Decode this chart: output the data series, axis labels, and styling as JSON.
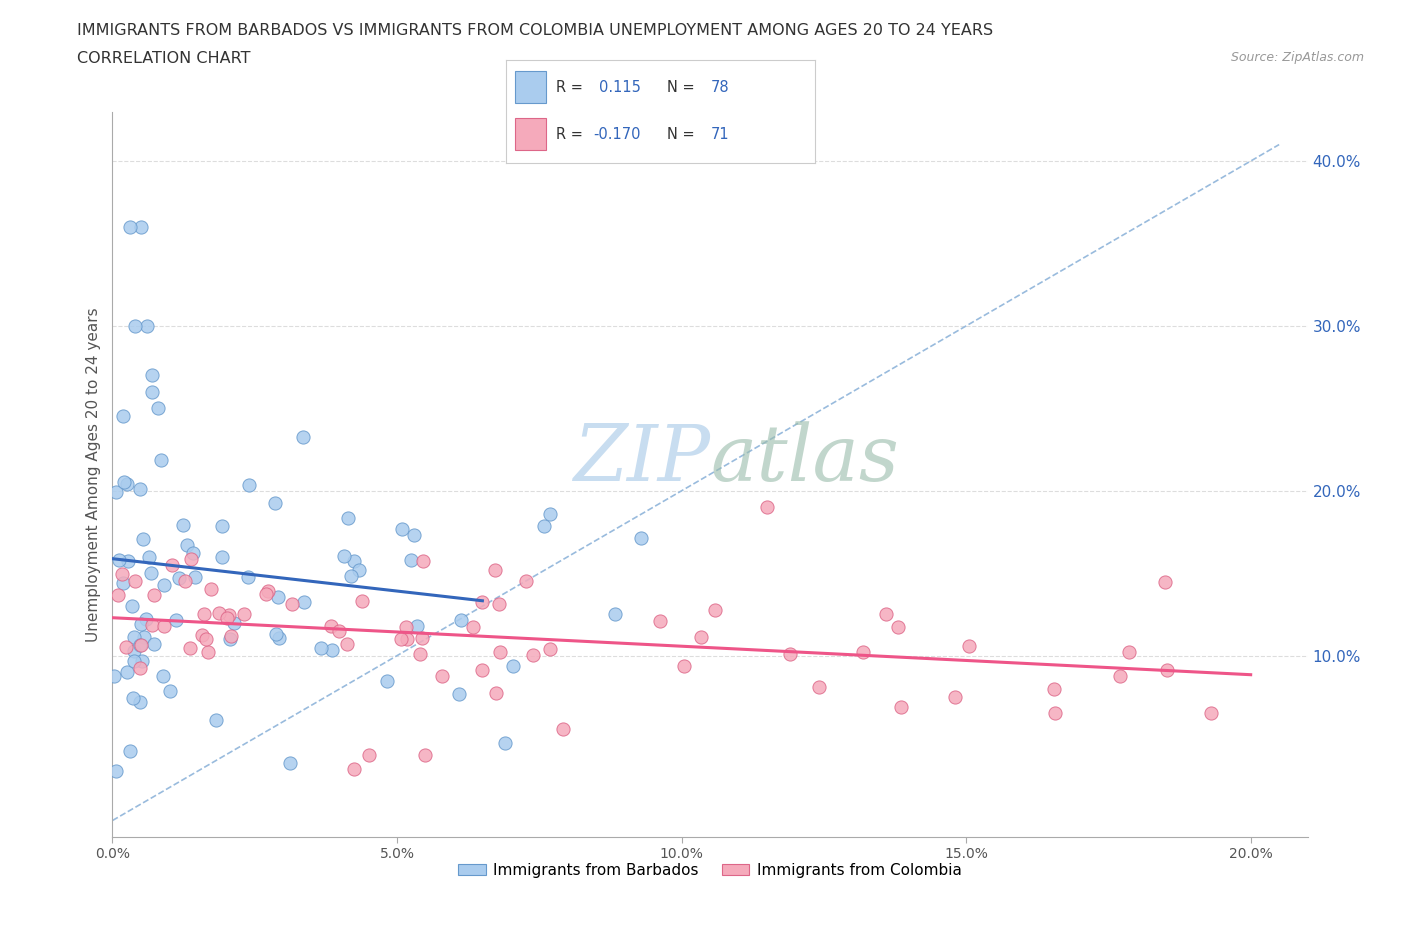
{
  "title_line1": "IMMIGRANTS FROM BARBADOS VS IMMIGRANTS FROM COLOMBIA UNEMPLOYMENT AMONG AGES 20 TO 24 YEARS",
  "title_line2": "CORRELATION CHART",
  "source": "Source: ZipAtlas.com",
  "ylabel": "Unemployment Among Ages 20 to 24 years",
  "xlim": [
    0.0,
    0.21
  ],
  "ylim": [
    -0.01,
    0.43
  ],
  "xticks": [
    0.0,
    0.05,
    0.1,
    0.15,
    0.2
  ],
  "xtick_labels": [
    "0.0%",
    "5.0%",
    "10.0%",
    "15.0%",
    "20.0%"
  ],
  "yticks_right": [
    0.1,
    0.2,
    0.3,
    0.4
  ],
  "ytick_right_labels": [
    "10.0%",
    "20.0%",
    "30.0%",
    "40.0%"
  ],
  "barbados_color": "#aaccee",
  "colombia_color": "#f5aabb",
  "barbados_edge": "#6699cc",
  "colombia_edge": "#dd6688",
  "trendline_barbados_color": "#3366bb",
  "trendline_colombia_color": "#ee5588",
  "refline_color": "#99bbdd",
  "grid_color": "#dddddd",
  "background_color": "#ffffff",
  "watermark_color": "#c8ddf0",
  "R_barbados": "0.115",
  "N_barbados": "78",
  "R_colombia": "-0.170",
  "N_colombia": "71",
  "stat_text_color": "#3366bb",
  "legend_label_color": "#333333"
}
